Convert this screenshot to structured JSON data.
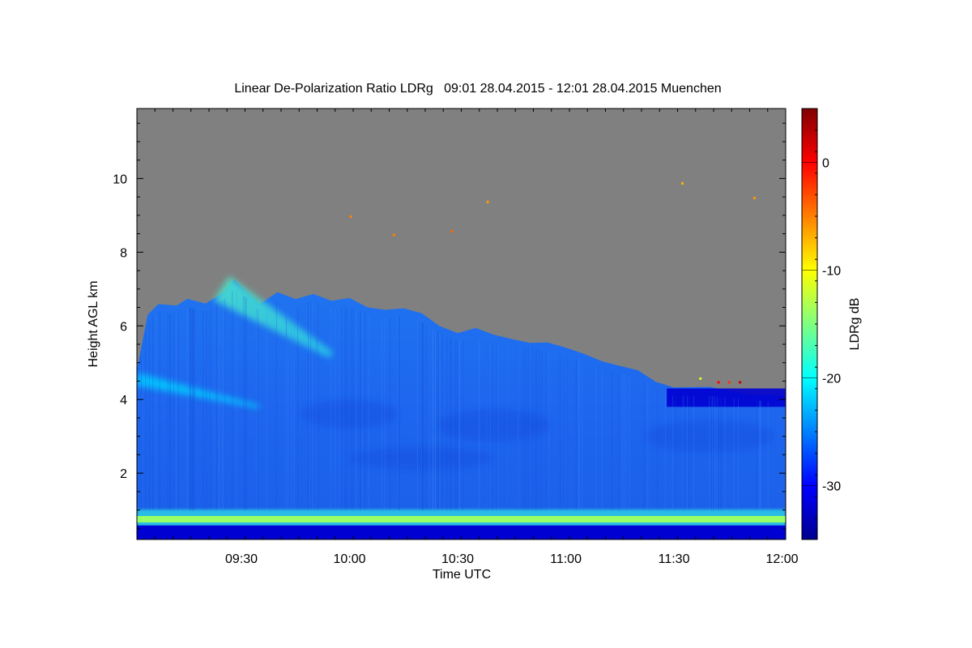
{
  "chart_data": {
    "type": "heatmap",
    "title": "Linear De-Polarization Ratio LDRg   09:01 28.04.2015 - 12:01 28.04.2015 Muenchen",
    "xlabel": "Time UTC",
    "ylabel": "Height AGL km",
    "colorbar_label": "LDRg dB",
    "x_range_minutes_utc": [
      541,
      721
    ],
    "y_range_km": [
      0.2,
      11.9
    ],
    "color_range_db": [
      -35,
      5
    ],
    "x_ticks": [
      {
        "minute": 570,
        "label": "09:30"
      },
      {
        "minute": 600,
        "label": "10:00"
      },
      {
        "minute": 630,
        "label": "10:30"
      },
      {
        "minute": 660,
        "label": "11:00"
      },
      {
        "minute": 690,
        "label": "11:30"
      },
      {
        "minute": 720,
        "label": "12:00"
      }
    ],
    "y_ticks": [
      {
        "value": 2,
        "label": "2"
      },
      {
        "value": 4,
        "label": "4"
      },
      {
        "value": 6,
        "label": "6"
      },
      {
        "value": 8,
        "label": "8"
      },
      {
        "value": 10,
        "label": "10"
      }
    ],
    "colorbar_ticks": [
      {
        "value": -30,
        "label": "-30"
      },
      {
        "value": -20,
        "label": "-20"
      },
      {
        "value": -10,
        "label": "-10"
      },
      {
        "value": 0,
        "label": "0"
      }
    ],
    "no_signal_color": "#808080",
    "colormap": [
      "#00008f",
      "#0000ff",
      "#0080ff",
      "#00ffff",
      "#80ff80",
      "#ffff00",
      "#ff8000",
      "#ff0000",
      "#800000"
    ],
    "signal_top_km": [
      [
        541,
        4.8
      ],
      [
        544,
        6.3
      ],
      [
        547,
        6.6
      ],
      [
        552,
        6.5
      ],
      [
        555,
        6.7
      ],
      [
        560,
        6.6
      ],
      [
        565,
        6.9
      ],
      [
        568,
        7.2
      ],
      [
        571,
        7.0
      ],
      [
        575,
        6.6
      ],
      [
        580,
        6.9
      ],
      [
        585,
        6.7
      ],
      [
        590,
        6.9
      ],
      [
        595,
        6.7
      ],
      [
        600,
        6.7
      ],
      [
        605,
        6.5
      ],
      [
        610,
        6.4
      ],
      [
        615,
        6.5
      ],
      [
        620,
        6.3
      ],
      [
        625,
        6.0
      ],
      [
        630,
        5.8
      ],
      [
        635,
        5.9
      ],
      [
        640,
        5.7
      ],
      [
        645,
        5.7
      ],
      [
        650,
        5.6
      ],
      [
        655,
        5.5
      ],
      [
        660,
        5.4
      ],
      [
        665,
        5.3
      ],
      [
        670,
        5.0
      ],
      [
        675,
        4.9
      ],
      [
        680,
        4.8
      ],
      [
        685,
        4.5
      ],
      [
        690,
        4.3
      ],
      [
        700,
        4.3
      ],
      [
        710,
        4.2
      ],
      [
        721,
        4.1
      ]
    ],
    "layers": [
      {
        "name": "boundary layer top",
        "height_km": 0.75,
        "ldr_db": -14
      },
      {
        "name": "near-ground",
        "height_km": 0.45,
        "ldr_db": -32
      },
      {
        "name": "cirrus feature",
        "start": [
          565,
          7.1
        ],
        "end": [
          595,
          5.2
        ],
        "ldr_db": -21
      },
      {
        "name": "low cirrus streak",
        "start": [
          541,
          4.6
        ],
        "end": [
          575,
          3.8
        ],
        "ldr_db": -22
      },
      {
        "name": "dark top band",
        "x": [
          688,
          721
        ],
        "y": [
          3.8,
          4.3
        ],
        "ldr_db": -32
      }
    ]
  }
}
